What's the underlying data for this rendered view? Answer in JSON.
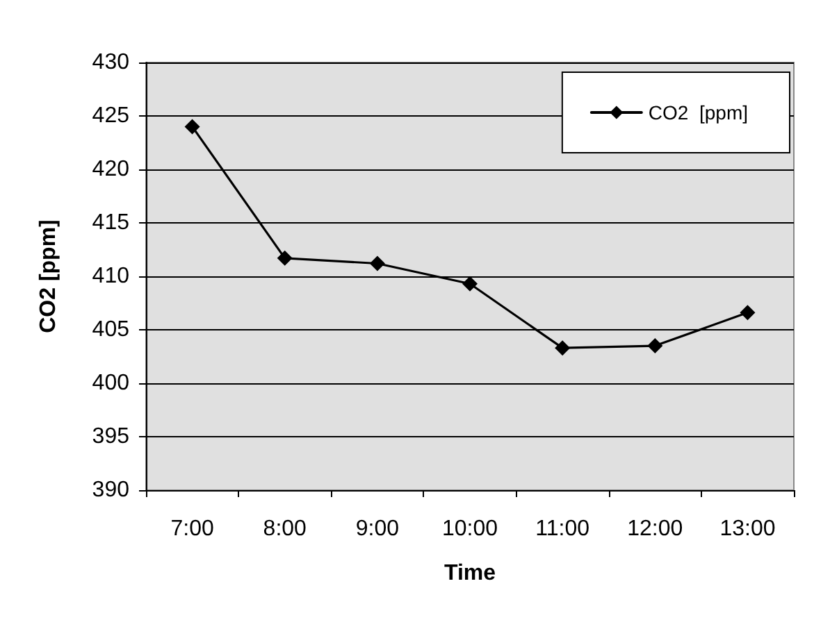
{
  "chart_data": {
    "type": "line",
    "xlabel": "Time",
    "ylabel": "CO2 [ppm]",
    "categories": [
      "7:00",
      "8:00",
      "9:00",
      "10:00",
      "11:00",
      "12:00",
      "13:00"
    ],
    "series": [
      {
        "name": "CO2  [ppm]",
        "color": "#000000",
        "values": [
          424,
          411.7,
          411.2,
          409.3,
          403.3,
          403.5,
          406.6
        ]
      }
    ],
    "ylim": [
      390,
      430
    ],
    "yticks": [
      390,
      395,
      400,
      405,
      410,
      415,
      420,
      425,
      430
    ],
    "grid": "y",
    "legend": "top right",
    "marker": "diamond",
    "line_style": "solid"
  }
}
